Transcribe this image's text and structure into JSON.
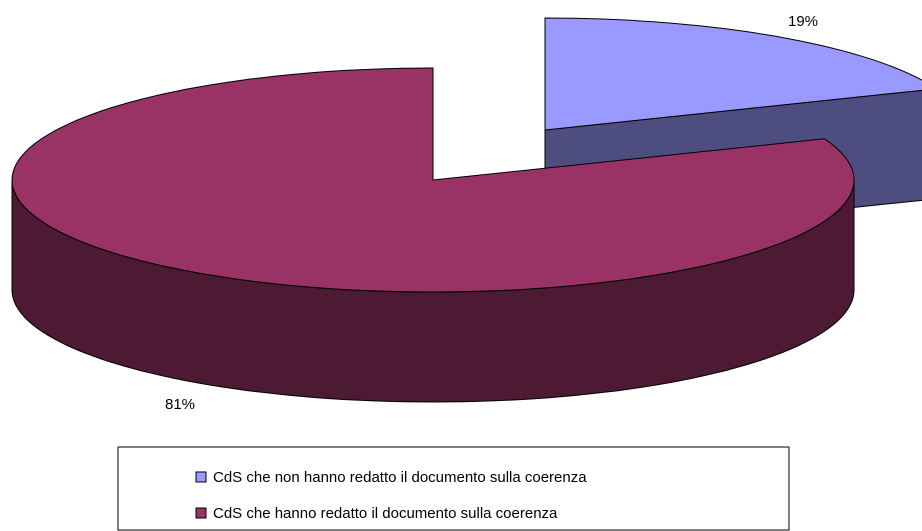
{
  "chart_data": {
    "type": "pie",
    "categories": [
      "CdS che non hanno redatto il documento sulla coerenza",
      "CdS che hanno redatto il documento sulla coerenza"
    ],
    "values": [
      19,
      81
    ],
    "value_labels": [
      "19%",
      "81%"
    ],
    "colors": [
      "#9999ff",
      "#993366"
    ],
    "legend": "bottom"
  }
}
